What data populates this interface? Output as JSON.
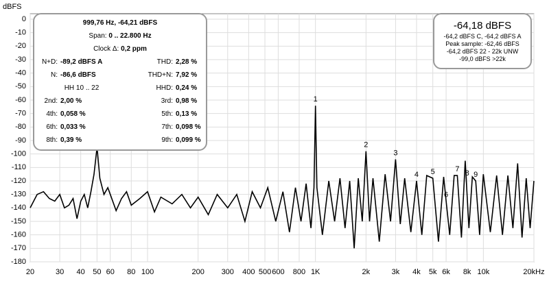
{
  "chart_data": {
    "type": "line",
    "ylabel": "dBFS",
    "log_x": true,
    "grid": true,
    "xlim": [
      20,
      20000
    ],
    "ylim": [
      -180,
      0
    ],
    "xticks": [
      20,
      30,
      40,
      50,
      60,
      80,
      100,
      200,
      300,
      400,
      500,
      600,
      800,
      {
        "value": 1000,
        "label": "1K"
      },
      {
        "value": 2000,
        "label": "2k"
      },
      {
        "value": 3000,
        "label": "3k"
      },
      {
        "value": 4000,
        "label": "4k"
      },
      {
        "value": 5000,
        "label": "5k"
      },
      {
        "value": 6000,
        "label": "6k"
      },
      {
        "value": 8000,
        "label": "8k"
      },
      {
        "value": 10000,
        "label": "10k"
      },
      {
        "value": 20000,
        "label": "20kHz"
      }
    ],
    "yticks": [
      0,
      -10,
      -20,
      -30,
      -40,
      -50,
      -60,
      -70,
      -80,
      -90,
      -100,
      -110,
      -120,
      -130,
      -140,
      -150,
      -160,
      -170,
      -180
    ],
    "x": [
      20,
      22,
      24,
      26,
      28,
      30,
      32,
      34,
      36,
      38,
      40,
      42,
      44,
      46,
      48,
      50,
      52,
      55,
      58,
      60,
      65,
      70,
      75,
      80,
      90,
      100,
      110,
      120,
      140,
      160,
      180,
      200,
      230,
      260,
      300,
      340,
      380,
      420,
      470,
      520,
      580,
      640,
      700,
      760,
      820,
      880,
      940,
      980,
      1000,
      1020,
      1100,
      1200,
      1300,
      1400,
      1500,
      1600,
      1700,
      1800,
      1900,
      2000,
      2100,
      2200,
      2400,
      2600,
      2800,
      3000,
      3200,
      3400,
      3700,
      4000,
      4300,
      4600,
      5000,
      5400,
      5800,
      6000,
      6300,
      6700,
      7000,
      7400,
      7800,
      8200,
      8600,
      9000,
      9500,
      10000,
      11000,
      12000,
      13000,
      14000,
      15000,
      16000,
      17000,
      18000,
      19000,
      20000
    ],
    "series": [
      {
        "color": "#000000",
        "values": [
          -140,
          -130,
          -128,
          -133,
          -135,
          -130,
          -140,
          -138,
          -133,
          -148,
          -135,
          -130,
          -140,
          -128,
          -115,
          -95,
          -118,
          -130,
          -125,
          -130,
          -142,
          -133,
          -128,
          -138,
          -133,
          -128,
          -143,
          -132,
          -137,
          -130,
          -140,
          -132,
          -145,
          -130,
          -140,
          -130,
          -150,
          -128,
          -140,
          -125,
          -150,
          -128,
          -158,
          -125,
          -150,
          -122,
          -155,
          -125,
          -64.2,
          -125,
          -160,
          -120,
          -150,
          -118,
          -155,
          -120,
          -170,
          -118,
          -150,
          -98,
          -150,
          -118,
          -165,
          -115,
          -150,
          -104,
          -152,
          -118,
          -158,
          -120,
          -160,
          -116,
          -118,
          -165,
          -117,
          -135,
          -160,
          -116,
          -116,
          -162,
          -105,
          -155,
          -117,
          -120,
          -160,
          -115,
          -158,
          -116,
          -160,
          -116,
          -155,
          -107,
          -162,
          -118,
          -155,
          -120
        ]
      }
    ],
    "annotations": [
      {
        "text": "1",
        "x": 1000,
        "y": -64.2
      },
      {
        "text": "2",
        "x": 2000,
        "y": -98
      },
      {
        "text": "3",
        "x": 3000,
        "y": -104
      },
      {
        "text": "4",
        "x": 4000,
        "y": -120
      },
      {
        "text": "5",
        "x": 5000,
        "y": -118
      },
      {
        "text": "6",
        "x": 6000,
        "y": -135
      },
      {
        "text": "7",
        "x": 7000,
        "y": -116
      },
      {
        "text": "8",
        "x": 8000,
        "y": -119
      },
      {
        "text": "9",
        "x": 9000,
        "y": -120
      }
    ]
  },
  "info_panel": {
    "header": "999,76 Hz, -64,21 dBFS",
    "span": {
      "label": "Span:",
      "value": "0 .. 22.800 Hz"
    },
    "clock": {
      "label": "Clock Δ:",
      "value": "0,2 ppm"
    },
    "rows": [
      [
        {
          "label": "N+D:",
          "value": "-89,2 dBFS A"
        },
        {
          "label": "THD:",
          "value": "2,28 %"
        }
      ],
      [
        {
          "label": "N:",
          "value": "-86,6 dBFS"
        },
        {
          "label": "THD+N:",
          "value": "7,92 %"
        }
      ],
      [
        {
          "label": "HH 10 .. 22"
        },
        {
          "label": "HHD:",
          "value": "0,24 %"
        }
      ],
      [
        {
          "label": "2nd:",
          "value": "2,00 %"
        },
        {
          "label": "3rd:",
          "value": "0,98 %"
        }
      ],
      [
        {
          "label": "4th:",
          "value": "0,058 %"
        },
        {
          "label": "5th:",
          "value": "0,13 %"
        }
      ],
      [
        {
          "label": "6th:",
          "value": "0,033 %"
        },
        {
          "label": "7th:",
          "value": "0,098 %"
        }
      ],
      [
        {
          "label": "8th:",
          "value": "0,39 %"
        },
        {
          "label": "9th:",
          "value": "0,099 %"
        }
      ]
    ]
  },
  "level_panel": {
    "title": "-64,18 dBFS",
    "lines": [
      "-64,2 dBFS C, -64,2 dBFS A",
      "Peak sample: -62,46 dBFS",
      "-64,2 dBFS 22 - 22k UNW",
      "-99,0 dBFS >22k"
    ]
  }
}
